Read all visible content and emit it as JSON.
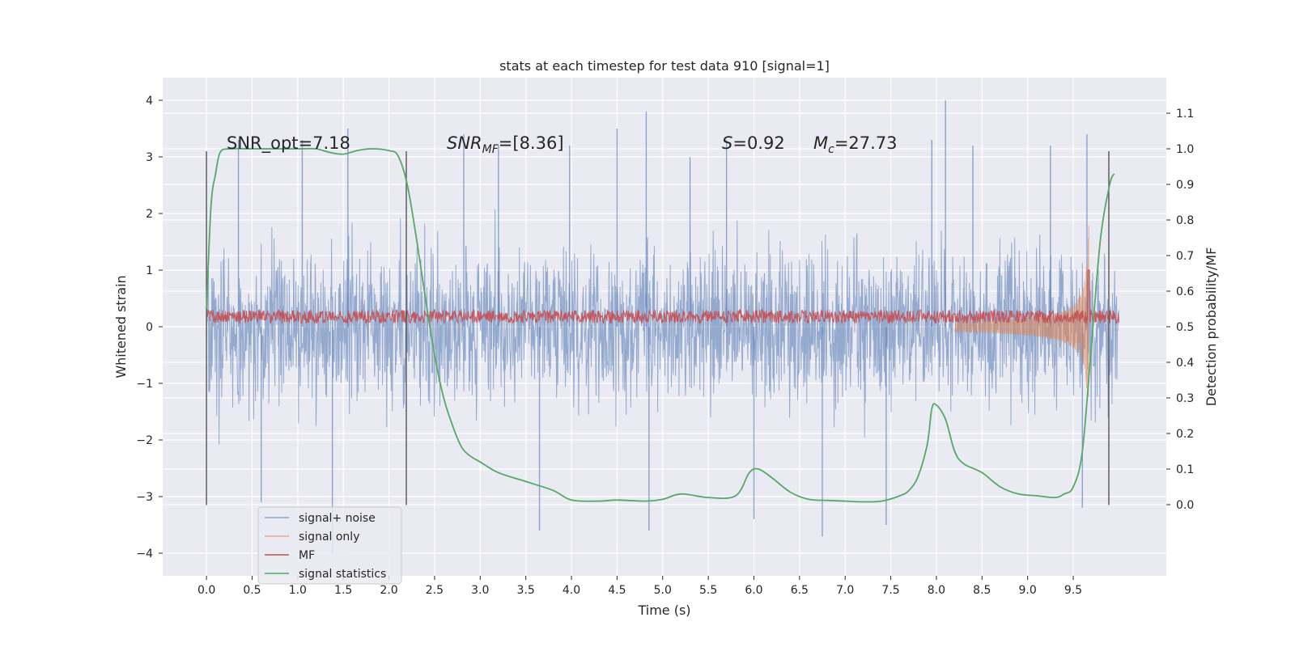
{
  "chart_data": {
    "type": "line",
    "title": "stats at each timestep for test data 910 [signal=1]",
    "xlabel": "Time (s)",
    "ylabel": "Whitened strain",
    "y2label": "Detection probability/MF",
    "xlim": [
      -0.48,
      10.52
    ],
    "ylim": [
      -4.4,
      4.4
    ],
    "y2lim": [
      -0.2,
      1.2
    ],
    "x_ticks": [
      0.0,
      0.5,
      1.0,
      1.5,
      2.0,
      2.5,
      3.0,
      3.5,
      4.0,
      4.5,
      5.0,
      5.5,
      6.0,
      6.5,
      7.0,
      7.5,
      8.0,
      8.5,
      9.0,
      9.5
    ],
    "x_tick_labels": [
      "0.0",
      "0.5",
      "1.0",
      "1.5",
      "2.0",
      "2.5",
      "3.0",
      "3.5",
      "4.0",
      "4.5",
      "5.0",
      "5.5",
      "6.0",
      "6.5",
      "7.0",
      "7.5",
      "8.0",
      "8.5",
      "9.0",
      "9.5"
    ],
    "y_ticks": [
      4,
      3,
      2,
      1,
      0,
      -1,
      -2,
      -3,
      -4
    ],
    "y_tick_labels": [
      "4",
      "3",
      "2",
      "1",
      "0",
      "−1",
      "−2",
      "−3",
      "−4"
    ],
    "y2_ticks": [
      1.1,
      1.0,
      0.9,
      0.8,
      0.7,
      0.6,
      0.5,
      0.4,
      0.3,
      0.2,
      0.1,
      0.0
    ],
    "y2_tick_labels": [
      "1.1",
      "1.0",
      "0.9",
      "0.8",
      "0.7",
      "0.6",
      "0.5",
      "0.4",
      "0.3",
      "0.2",
      "0.1",
      "0.0"
    ],
    "annotations": {
      "snr_opt": "SNR_opt=7.18",
      "snr_mf_base": "SNR",
      "snr_mf_sub": "MF",
      "snr_mf_rest": "=[8.36]",
      "s_label": "S",
      "s_rest": "=0.92",
      "mc_base": "M",
      "mc_sub": "c",
      "mc_rest": "=27.73"
    },
    "vlines": [
      {
        "x": 0.0,
        "ymin": -3.15,
        "ymax": 3.1
      },
      {
        "x": 2.19,
        "ymin": -3.15,
        "ymax": 3.1
      },
      {
        "x": 9.89,
        "ymin": -3.15,
        "ymax": 3.1
      }
    ],
    "legend": {
      "placement": "lower-left",
      "entries": [
        {
          "label": "signal+ noise",
          "color": "#4c72b0"
        },
        {
          "label": "signal only",
          "color": "#dd8452"
        },
        {
          "label": "MF",
          "color": "#c44e52"
        },
        {
          "label": "signal statistics",
          "color": "#55a868"
        }
      ]
    },
    "series": [
      {
        "name": "signal+ noise",
        "axis": "left",
        "color": "#4c72b0",
        "x_range": [
          0.0,
          10.0
        ],
        "typical_abs_max": 2.2,
        "peaks": [
          {
            "x": 0.35,
            "y": 3.3
          },
          {
            "x": 0.6,
            "y": -3.1
          },
          {
            "x": 1.05,
            "y": 3.3
          },
          {
            "x": 1.38,
            "y": -4.0
          },
          {
            "x": 1.55,
            "y": 3.5
          },
          {
            "x": 2.82,
            "y": 3.4
          },
          {
            "x": 3.2,
            "y": 3.2
          },
          {
            "x": 3.65,
            "y": -3.6
          },
          {
            "x": 3.98,
            "y": 3.2
          },
          {
            "x": 4.5,
            "y": 3.5
          },
          {
            "x": 4.82,
            "y": 3.8
          },
          {
            "x": 4.85,
            "y": -3.6
          },
          {
            "x": 5.3,
            "y": 3.0
          },
          {
            "x": 5.7,
            "y": 3.3
          },
          {
            "x": 6.0,
            "y": -3.4
          },
          {
            "x": 6.75,
            "y": -3.7
          },
          {
            "x": 7.45,
            "y": -3.5
          },
          {
            "x": 7.95,
            "y": 3.3
          },
          {
            "x": 8.1,
            "y": 4.0
          },
          {
            "x": 8.4,
            "y": 3.2
          },
          {
            "x": 9.25,
            "y": 3.2
          },
          {
            "x": 9.65,
            "y": 3.4
          },
          {
            "x": 9.6,
            "y": -3.2
          }
        ]
      },
      {
        "name": "signal only",
        "axis": "left",
        "color": "#dd8452",
        "chirp_start": 8.2,
        "chirp_peak_time": 9.67,
        "chirp_peak_amplitude": 1.9
      },
      {
        "name": "MF",
        "axis": "left",
        "color": "#c44e52",
        "x_range": [
          0.0,
          10.0
        ],
        "baseline": 0.18,
        "noise_amplitude": 0.12,
        "spike": {
          "x": 9.67,
          "y": 1.0
        }
      },
      {
        "name": "signal statistics",
        "axis": "right",
        "color": "#55a868",
        "x": [
          0.0,
          0.05,
          0.1,
          0.15,
          0.25,
          0.5,
          0.8,
          1.0,
          1.2,
          1.35,
          1.5,
          1.65,
          1.8,
          2.0,
          2.1,
          2.2,
          2.3,
          2.4,
          2.5,
          2.6,
          2.7,
          2.8,
          2.9,
          3.0,
          3.2,
          3.5,
          3.8,
          4.0,
          4.3,
          4.5,
          4.8,
          5.0,
          5.2,
          5.5,
          5.8,
          5.95,
          6.05,
          6.2,
          6.4,
          6.6,
          6.8,
          7.0,
          7.2,
          7.4,
          7.6,
          7.7,
          7.8,
          7.9,
          7.95,
          8.0,
          8.1,
          8.2,
          8.3,
          8.5,
          8.7,
          8.9,
          9.1,
          9.3,
          9.4,
          9.5,
          9.6,
          9.7,
          9.8,
          9.9,
          9.95
        ],
        "y": [
          0.55,
          0.84,
          0.93,
          0.99,
          1.0,
          1.0,
          1.0,
          1.0,
          1.0,
          0.99,
          0.985,
          0.995,
          1.0,
          0.995,
          0.98,
          0.9,
          0.75,
          0.58,
          0.42,
          0.3,
          0.22,
          0.16,
          0.135,
          0.12,
          0.09,
          0.065,
          0.04,
          0.013,
          0.01,
          0.013,
          0.01,
          0.015,
          0.03,
          0.02,
          0.025,
          0.09,
          0.1,
          0.075,
          0.035,
          0.015,
          0.012,
          0.01,
          0.008,
          0.01,
          0.025,
          0.04,
          0.08,
          0.17,
          0.27,
          0.28,
          0.24,
          0.15,
          0.115,
          0.09,
          0.05,
          0.03,
          0.025,
          0.02,
          0.03,
          0.05,
          0.15,
          0.45,
          0.75,
          0.9,
          0.93
        ]
      }
    ]
  }
}
